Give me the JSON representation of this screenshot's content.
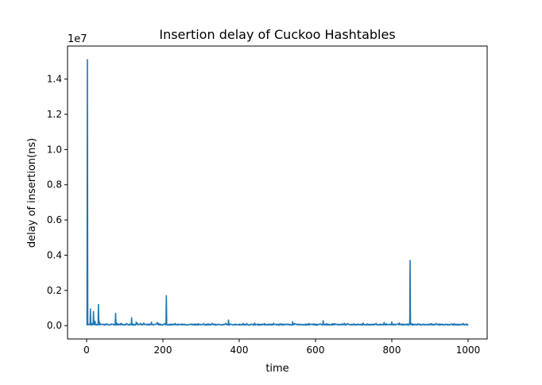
{
  "chart_data": {
    "type": "line",
    "title": "Insertion delay of Cuckoo Hashtables",
    "xlabel": "time",
    "ylabel": "delay of insertion(ns)",
    "y_offset_label": "1e7",
    "y_scale_multiplier": 10000000,
    "xlim": [
      -50,
      1050
    ],
    "ylim": [
      -756000,
      15876000
    ],
    "x_ticks": [
      0,
      200,
      400,
      600,
      800,
      1000
    ],
    "x_tick_labels": [
      "0",
      "200",
      "400",
      "600",
      "800",
      "1000"
    ],
    "y_ticks": [
      0,
      2000000,
      4000000,
      6000000,
      8000000,
      10000000,
      12000000,
      14000000
    ],
    "y_tick_labels": [
      "0.0",
      "0.2",
      "0.4",
      "0.6",
      "0.8",
      "1.0",
      "1.2",
      "1.4"
    ],
    "grid": false,
    "legend": "none",
    "series": [
      {
        "color": "#1f77b4",
        "baseline_value": 60000,
        "x_range": [
          0,
          1000
        ],
        "peaks": [
          {
            "x": 0,
            "y": 80000
          },
          {
            "x": 2,
            "y": 15100000
          },
          {
            "x": 4,
            "y": 100000
          },
          {
            "x": 10,
            "y": 950000
          },
          {
            "x": 12,
            "y": 150000
          },
          {
            "x": 18,
            "y": 800000
          },
          {
            "x": 22,
            "y": 250000
          },
          {
            "x": 31,
            "y": 1200000
          },
          {
            "x": 34,
            "y": 200000
          },
          {
            "x": 76,
            "y": 700000
          },
          {
            "x": 118,
            "y": 450000
          },
          {
            "x": 130,
            "y": 200000
          },
          {
            "x": 150,
            "y": 150000
          },
          {
            "x": 170,
            "y": 200000
          },
          {
            "x": 185,
            "y": 180000
          },
          {
            "x": 209,
            "y": 1700000
          },
          {
            "x": 372,
            "y": 320000
          },
          {
            "x": 420,
            "y": 120000
          },
          {
            "x": 510,
            "y": 110000
          },
          {
            "x": 540,
            "y": 220000
          },
          {
            "x": 620,
            "y": 280000
          },
          {
            "x": 650,
            "y": 120000
          },
          {
            "x": 700,
            "y": 110000
          },
          {
            "x": 780,
            "y": 180000
          },
          {
            "x": 800,
            "y": 200000
          },
          {
            "x": 820,
            "y": 150000
          },
          {
            "x": 848,
            "y": 3700000
          }
        ]
      }
    ]
  }
}
